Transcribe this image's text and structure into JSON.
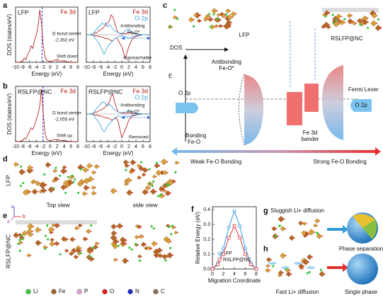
{
  "panel_labels": [
    "a",
    "b",
    "c",
    "d",
    "e",
    "f",
    "g",
    "h"
  ],
  "chart_data": [
    {
      "type": "line",
      "x": [
        -10,
        -9,
        -8,
        -7.5,
        -7,
        -6.5,
        -6,
        -5.5,
        -5,
        -4.5,
        -4,
        -3.5,
        -3,
        -2.5,
        -2,
        -1.5,
        -1,
        0,
        1,
        2,
        3,
        4,
        5,
        6,
        7,
        8
      ],
      "xlim": [
        -10,
        8
      ],
      "xticks": [
        -10,
        -8,
        -6,
        -4,
        -2,
        0,
        2,
        4,
        6,
        8
      ],
      "ylim": [
        0,
        10
      ],
      "xlabel": "Energy (eV)",
      "ylabel": "DOS (states/eV)",
      "vline": -2.352,
      "series": [
        {
          "name": "Fe 3d",
          "color": "#b01010",
          "values": [
            0,
            0,
            0.2,
            0.8,
            0.5,
            1.5,
            2.0,
            3.0,
            2.5,
            4.0,
            5.0,
            6.5,
            9.5,
            7.0,
            3.0,
            1.0,
            0.3,
            0.1,
            0.3,
            0.5,
            0.2,
            0.3,
            0.1,
            0,
            0,
            0
          ]
        }
      ],
      "annotations": [
        "LFP",
        "D bond center",
        "-2.352 eV",
        "Shift down"
      ]
    },
    {
      "type": "line",
      "x": [
        -10,
        -9,
        -8,
        -7.5,
        -7,
        -6.5,
        -6,
        -5.5,
        -5,
        -4.5,
        -4,
        -3.5,
        -3,
        -2.5,
        -2,
        -1.5,
        -1,
        0,
        1,
        2,
        3,
        4,
        5,
        6,
        7,
        8
      ],
      "xlim": [
        -10,
        8
      ],
      "xticks": [
        -10,
        -8,
        -6,
        -4,
        -2,
        0,
        2,
        4,
        6,
        8
      ],
      "ylim": [
        -7,
        7
      ],
      "xlabel": "Energy (eV)",
      "series": [
        {
          "name": "Fe 3d",
          "color": "#b01010",
          "values": [
            0,
            0,
            0.2,
            0.5,
            0.5,
            1,
            1.2,
            1.5,
            2,
            2.5,
            3,
            3.5,
            5,
            4.5,
            3,
            1.5,
            0.5,
            0.2,
            0.3,
            0.5,
            0.3,
            0.2,
            0.1,
            0,
            0,
            0
          ],
          "values_down": [
            0,
            0,
            -0.2,
            -0.3,
            -0.3,
            -0.5,
            -0.5,
            -0.6,
            -0.8,
            -1,
            -1,
            -1.2,
            -1.5,
            -1.5,
            -1,
            -0.8,
            -1.5,
            -3,
            -6,
            -3,
            -1,
            -0.5,
            -0.2,
            0,
            0,
            0
          ]
        },
        {
          "name": "O 2p",
          "color": "#2e9ad8",
          "values": [
            0,
            0,
            0.2,
            1,
            1.5,
            2,
            2.5,
            3,
            2.5,
            3,
            2,
            2.5,
            2,
            1.5,
            1,
            0.8,
            0.5,
            0.3,
            1,
            1.5,
            0.5,
            0.3,
            0.1,
            0,
            0,
            0
          ],
          "values_down": [
            0,
            0,
            -0.2,
            -1,
            -1.5,
            -2,
            -3,
            -4,
            -5,
            -4,
            -3,
            -2.5,
            -2,
            -1.5,
            -1,
            -0.8,
            -0.5,
            -0.3,
            -0.5,
            -1,
            -0.5,
            -0.3,
            -0.1,
            0,
            0,
            0
          ]
        }
      ],
      "annotations": [
        "LFP",
        "Antibonding",
        "Fe-O*",
        "Approachable"
      ]
    },
    {
      "type": "line",
      "x": [
        -10,
        -9,
        -8,
        -7.5,
        -7,
        -6.5,
        -6,
        -5.5,
        -5,
        -4.5,
        -4,
        -3.5,
        -3,
        -2.5,
        -2,
        -1.5,
        -1,
        0,
        1,
        2,
        3,
        4,
        5,
        6,
        7,
        8
      ],
      "xlim": [
        -10,
        8
      ],
      "xticks": [
        -10,
        -8,
        -6,
        -4,
        -2,
        0,
        2,
        4,
        6,
        8
      ],
      "ylim": [
        0,
        10
      ],
      "xlabel": "Energy (eV)",
      "ylabel": "DOS (states/eV)",
      "vline": -2.055,
      "series": [
        {
          "name": "Fe 3d",
          "color": "#b01010",
          "values": [
            0,
            0,
            0.2,
            0.6,
            0.5,
            1.2,
            1.8,
            2.5,
            2.2,
            3.0,
            4.0,
            5.0,
            6.5,
            9.5,
            5.0,
            1.5,
            0.4,
            0.1,
            0.3,
            0.4,
            0.2,
            0.2,
            0.1,
            0,
            0,
            0
          ]
        }
      ],
      "annotations": [
        "RSLFP@NC",
        "D bond center",
        "-2.055 eV",
        "Shift up"
      ]
    },
    {
      "type": "line",
      "x": [
        -10,
        -9,
        -8,
        -7.5,
        -7,
        -6.5,
        -6,
        -5.5,
        -5,
        -4.5,
        -4,
        -3.5,
        -3,
        -2.5,
        -2,
        -1.5,
        -1,
        0,
        1,
        2,
        3,
        4,
        5,
        6,
        7,
        8
      ],
      "xlim": [
        -10,
        8
      ],
      "xticks": [
        -10,
        -8,
        -6,
        -4,
        -2,
        0,
        2,
        4,
        6,
        8
      ],
      "ylim": [
        -7,
        7
      ],
      "xlabel": "Energy (eV)",
      "series": [
        {
          "name": "Fe 3d",
          "color": "#b01010",
          "values": [
            0,
            0,
            0.2,
            0.5,
            0.5,
            0.8,
            1,
            1.2,
            1.5,
            2,
            2.5,
            3,
            4.5,
            5,
            3,
            1.5,
            0.5,
            0.2,
            0.2,
            0.3,
            0.2,
            0.1,
            0,
            0,
            0,
            0
          ],
          "values_down": [
            0,
            0,
            -0.2,
            -0.3,
            -0.3,
            -0.5,
            -0.5,
            -0.6,
            -0.8,
            -1,
            -1,
            -1.2,
            -1.5,
            -1.5,
            -1.2,
            -1,
            -2,
            -6,
            -4,
            -1.5,
            -0.5,
            -0.3,
            -0.1,
            0,
            0,
            0
          ]
        },
        {
          "name": "O 2p",
          "color": "#2e9ad8",
          "values": [
            0,
            0,
            0.2,
            1,
            1.5,
            2,
            2.5,
            3,
            3,
            2.5,
            2,
            2.5,
            2,
            1.5,
            1,
            0.8,
            0.5,
            0.3,
            0.5,
            0.8,
            0.4,
            0.2,
            0.1,
            0,
            0,
            0
          ],
          "values_down": [
            0,
            0,
            -0.2,
            -1,
            -1.5,
            -2,
            -3,
            -4,
            -4.5,
            -4,
            -3,
            -2.5,
            -2,
            -1.5,
            -1,
            -0.8,
            -0.5,
            -0.8,
            -0.5,
            -0.6,
            -0.3,
            -0.2,
            -0.1,
            0,
            0,
            0
          ]
        }
      ],
      "annotations": [
        "RSLFP@NC",
        "Antibonding",
        "Fe-O*",
        "Removed"
      ]
    },
    {
      "type": "line",
      "x": [
        0,
        1,
        2,
        3,
        4,
        5,
        6,
        7,
        8
      ],
      "xlim": [
        0,
        8
      ],
      "xticks": [
        0,
        2,
        4,
        6,
        8
      ],
      "ylim": [
        0,
        0.42
      ],
      "yticks": [
        {
          "value": 0,
          "label": "0.0"
        },
        0.1,
        0.2,
        0.3,
        0.4
      ],
      "xlabel": "Migration Coordinate",
      "ylabel": "Relative Energy (eV)",
      "series": [
        {
          "name": "LFP",
          "color": "#2f9be0",
          "marker": "diamond",
          "values": [
            0,
            0.04,
            0.14,
            0.28,
            0.39,
            0.29,
            0.14,
            0.04,
            0
          ]
        },
        {
          "name": "RSLFP@NC",
          "color": "#e0393e",
          "marker": "square",
          "values": [
            0,
            0.03,
            0.1,
            0.21,
            0.29,
            0.21,
            0.1,
            0.03,
            0
          ]
        }
      ]
    }
  ],
  "diagram_c": {
    "structures": [
      "LFP",
      "RSLFP@NC"
    ],
    "axis_labels": [
      "DOS",
      "E"
    ],
    "left": [
      "Antibonding",
      "Fe-O*",
      "O 2p",
      "Bonding",
      "Fe-O"
    ],
    "center": [
      "Fe 3d",
      "bander"
    ],
    "right": [
      "Fermi Lever",
      "O 2p"
    ],
    "scale": [
      "Weak Fe-O Bonding",
      "Strong Fe-O Bonding"
    ]
  },
  "structures": {
    "d": {
      "label": "LFP",
      "views": [
        "Top view",
        "side view"
      ],
      "axes": [
        "c",
        "a",
        "b"
      ]
    },
    "e": {
      "label": "RSLFP@NC"
    },
    "legend": [
      {
        "label": "Li",
        "color": "#3ec63e"
      },
      {
        "label": "Fe",
        "color": "#a0622d"
      },
      {
        "label": "P",
        "color": "#d9a0d0"
      },
      {
        "label": "O",
        "color": "#e02020"
      },
      {
        "label": "N",
        "color": "#2030c0"
      },
      {
        "label": "C",
        "color": "#8b6f5a"
      }
    ]
  },
  "diffusion": {
    "g": {
      "title": "Sluggish Li+ diffusion",
      "result": "Phase separation"
    },
    "h": {
      "title": "Fast Li+ diffusion",
      "result": "Single phase"
    }
  }
}
